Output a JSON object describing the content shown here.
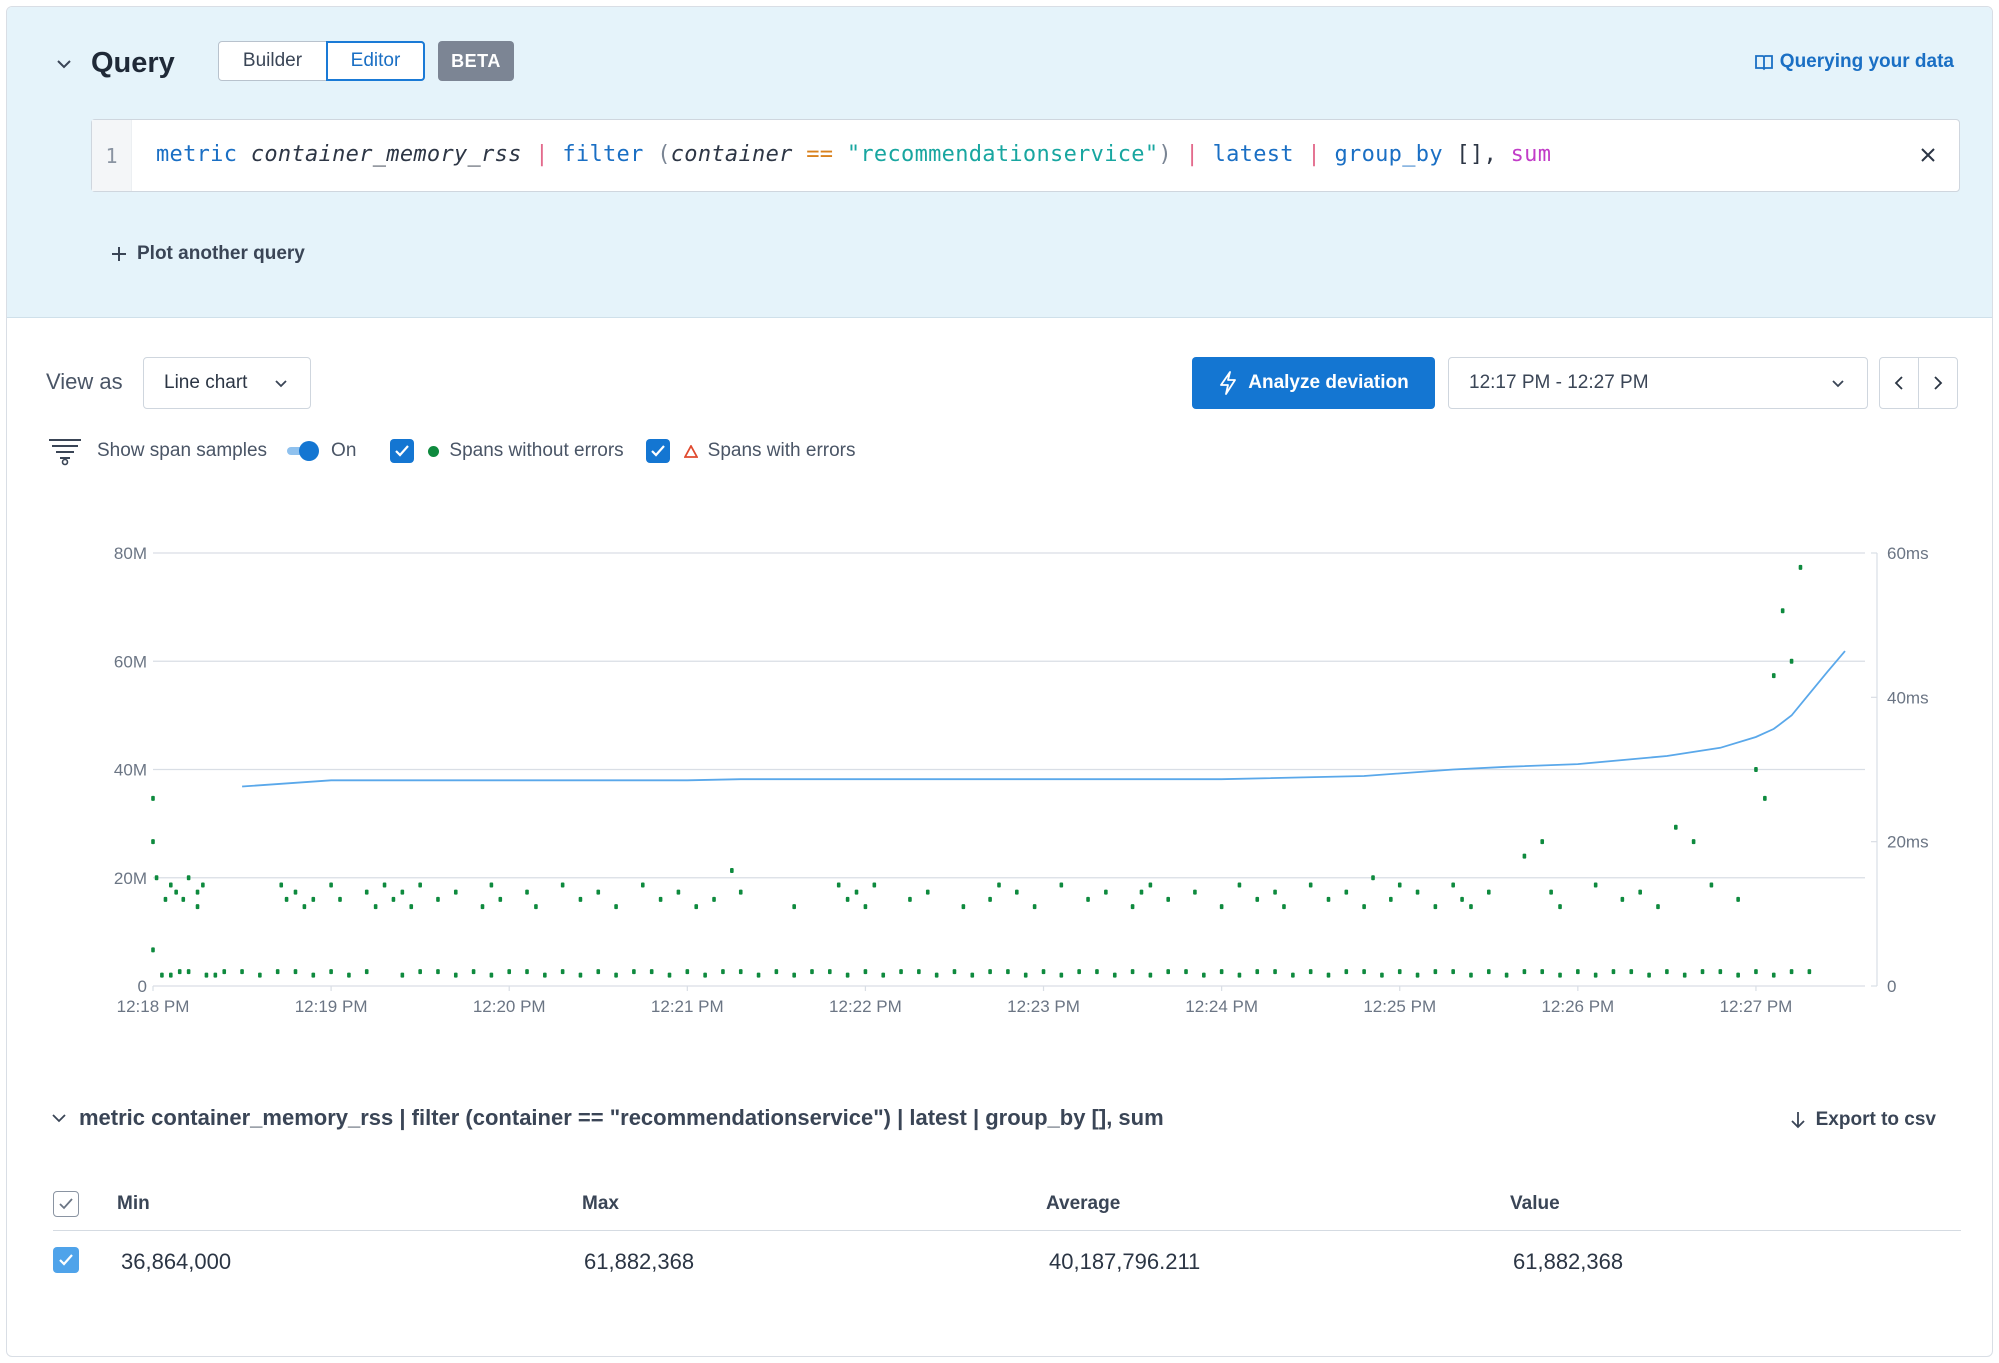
{
  "query": {
    "title": "Query",
    "modes": {
      "builder": "Builder",
      "editor": "Editor"
    },
    "badge": "BETA",
    "docs_link": "Querying your data",
    "line_number": "1",
    "code_tokens": [
      {
        "t": "metric",
        "c": "kw"
      },
      {
        "t": " ",
        "c": "plain"
      },
      {
        "t": "container_memory_rss",
        "c": "ident"
      },
      {
        "t": " | ",
        "c": "pipe"
      },
      {
        "t": "filter",
        "c": "kw"
      },
      {
        "t": " (",
        "c": "paren"
      },
      {
        "t": "container",
        "c": "ident"
      },
      {
        "t": " == ",
        "c": "op"
      },
      {
        "t": "\"recommendationservice\"",
        "c": "str"
      },
      {
        "t": ")",
        "c": "paren"
      },
      {
        "t": " | ",
        "c": "pipe"
      },
      {
        "t": "latest",
        "c": "kw"
      },
      {
        "t": " | ",
        "c": "pipe"
      },
      {
        "t": "group_by",
        "c": "kw"
      },
      {
        "t": " [], ",
        "c": "plain"
      },
      {
        "t": "sum",
        "c": "fn"
      }
    ],
    "plot_another": "Plot another query"
  },
  "toolbar": {
    "view_as_label": "View as",
    "view_as_value": "Line chart",
    "analyze_label": "Analyze deviation",
    "time_range": "12:17 PM - 12:27 PM"
  },
  "controls": {
    "show_span_samples": "Show span samples",
    "toggle_state": "On",
    "spans_without_errors": "Spans without errors",
    "spans_with_errors": "Spans with errors"
  },
  "colors": {
    "accent": "#1476d2",
    "line": "#5aa8ea",
    "span_ok": "#0e8a3e",
    "span_error": "#e04a2f",
    "grid": "#d9dee5"
  },
  "chart_data": {
    "type": "line",
    "x_ticks": [
      "12:18 PM",
      "12:19 PM",
      "12:20 PM",
      "12:21 PM",
      "12:22 PM",
      "12:23 PM",
      "12:24 PM",
      "12:25 PM",
      "12:26 PM",
      "12:27 PM"
    ],
    "x_range_minutes": [
      0,
      9.5
    ],
    "y_left": {
      "ticks": [
        "0",
        "20M",
        "40M",
        "60M",
        "80M"
      ],
      "range": [
        0,
        80000000
      ]
    },
    "y_right": {
      "ticks": [
        "0",
        "20ms",
        "40ms",
        "60ms"
      ],
      "range": [
        0,
        60
      ]
    },
    "grid": true,
    "series": [
      {
        "kind": "line",
        "axis": "left",
        "x": [
          0.5,
          1.0,
          2.0,
          3.0,
          3.3,
          4.0,
          5.0,
          6.0,
          6.8,
          7.3,
          7.6,
          8.0,
          8.5,
          8.8,
          9.0,
          9.1,
          9.2,
          9.3,
          9.4,
          9.5
        ],
        "y": [
          36864000,
          38000000,
          38000000,
          38000000,
          38200000,
          38200000,
          38200000,
          38200000,
          38800000,
          40000000,
          40500000,
          41000000,
          42500000,
          44000000,
          46000000,
          47500000,
          50000000,
          54000000,
          58000000,
          61882368
        ]
      },
      {
        "kind": "scatter",
        "axis": "right",
        "x": [
          0.0,
          0.0,
          0.0,
          0.02,
          0.07,
          0.1,
          0.13,
          0.17,
          0.2,
          0.25,
          0.25,
          0.28,
          0.72,
          0.75,
          0.8,
          0.85,
          0.9,
          1.0,
          1.05,
          1.2,
          1.25,
          1.3,
          1.35,
          1.4,
          1.45,
          1.5,
          1.6,
          1.7,
          1.85,
          1.9,
          1.95,
          2.1,
          2.15,
          2.3,
          2.4,
          2.5,
          2.6,
          2.75,
          2.85,
          2.95,
          3.05,
          3.15,
          3.25,
          3.3,
          3.6,
          3.85,
          3.9,
          3.95,
          4.0,
          4.05,
          4.25,
          4.35,
          4.55,
          4.7,
          4.75,
          4.85,
          4.95,
          5.1,
          5.25,
          5.35,
          5.5,
          5.55,
          5.6,
          5.7,
          5.85,
          6.0,
          6.1,
          6.2,
          6.3,
          6.35,
          6.5,
          6.6,
          6.7,
          6.8,
          6.85,
          6.95,
          7.0,
          7.1,
          7.2,
          7.3,
          7.35,
          7.4,
          7.5,
          7.7,
          7.8,
          7.85,
          7.9,
          8.1,
          8.25,
          8.35,
          8.45,
          8.55,
          8.65,
          8.75,
          8.9,
          9.0,
          9.05,
          9.1,
          9.15,
          9.2,
          9.25
        ],
        "y": [
          26,
          20,
          5,
          15,
          12,
          14,
          13,
          12,
          15,
          13,
          11,
          14,
          14,
          12,
          13,
          11,
          12,
          14,
          12,
          13,
          11,
          14,
          12,
          13,
          11,
          14,
          12,
          13,
          11,
          14,
          12,
          13,
          11,
          14,
          12,
          13,
          11,
          14,
          12,
          13,
          11,
          12,
          16,
          13,
          11,
          14,
          12,
          13,
          11,
          14,
          12,
          13,
          11,
          12,
          14,
          13,
          11,
          14,
          12,
          13,
          11,
          13,
          14,
          12,
          13,
          11,
          14,
          12,
          13,
          11,
          14,
          12,
          13,
          11,
          15,
          12,
          14,
          13,
          11,
          14,
          12,
          11,
          13,
          18,
          20,
          13,
          11,
          14,
          12,
          13,
          11,
          22,
          20,
          14,
          12,
          30,
          26,
          43,
          52,
          45,
          58
        ]
      },
      {
        "kind": "scatter",
        "axis": "right",
        "x": [
          0.05,
          0.1,
          0.15,
          0.2,
          0.3,
          0.35,
          0.4,
          0.5,
          0.6,
          0.7,
          0.8,
          0.9,
          1.0,
          1.1,
          1.2,
          1.4,
          1.5,
          1.6,
          1.7,
          1.8,
          1.9,
          2.0,
          2.1,
          2.2,
          2.3,
          2.4,
          2.5,
          2.6,
          2.7,
          2.8,
          2.9,
          3.0,
          3.1,
          3.2,
          3.3,
          3.4,
          3.5,
          3.6,
          3.7,
          3.8,
          3.9,
          4.0,
          4.1,
          4.2,
          4.3,
          4.4,
          4.5,
          4.6,
          4.7,
          4.8,
          4.9,
          5.0,
          5.1,
          5.2,
          5.3,
          5.4,
          5.5,
          5.6,
          5.7,
          5.8,
          5.9,
          6.0,
          6.1,
          6.2,
          6.3,
          6.4,
          6.5,
          6.6,
          6.7,
          6.8,
          6.9,
          7.0,
          7.1,
          7.2,
          7.3,
          7.4,
          7.5,
          7.6,
          7.7,
          7.8,
          7.9,
          8.0,
          8.1,
          8.2,
          8.3,
          8.4,
          8.5,
          8.6,
          8.7,
          8.8,
          8.9,
          9.0,
          9.1,
          9.2,
          9.3
        ],
        "y": [
          1.5,
          1.5,
          2,
          2,
          1.5,
          1.5,
          2,
          2,
          1.5,
          2,
          2,
          1.5,
          2,
          1.5,
          2,
          1.5,
          2,
          2,
          1.5,
          2,
          1.5,
          2,
          2,
          1.5,
          2,
          1.5,
          2,
          1.5,
          2,
          2,
          1.5,
          2,
          1.5,
          2,
          2,
          1.5,
          2,
          1.5,
          2,
          2,
          1.5,
          2,
          1.5,
          2,
          2,
          1.5,
          2,
          1.5,
          2,
          2,
          1.5,
          2,
          1.5,
          2,
          2,
          1.5,
          2,
          1.5,
          2,
          2,
          1.5,
          2,
          1.5,
          2,
          2,
          1.5,
          2,
          1.5,
          2,
          2,
          1.5,
          2,
          1.5,
          2,
          2,
          1.5,
          2,
          1.5,
          2,
          2,
          1.5,
          2,
          1.5,
          2,
          2,
          1.5,
          2,
          1.5,
          2,
          2,
          1.5,
          2,
          1.5,
          2,
          2
        ]
      }
    ]
  },
  "series_summary": {
    "expression": "metric container_memory_rss | filter (container == \"recommendationservice\") | latest | group_by [], sum",
    "export_label": "Export to csv",
    "columns": {
      "min": "Min",
      "max": "Max",
      "average": "Average",
      "value": "Value"
    },
    "row": {
      "min": "36,864,000",
      "max": "61,882,368",
      "average": "40,187,796.211",
      "value": "61,882,368"
    }
  }
}
